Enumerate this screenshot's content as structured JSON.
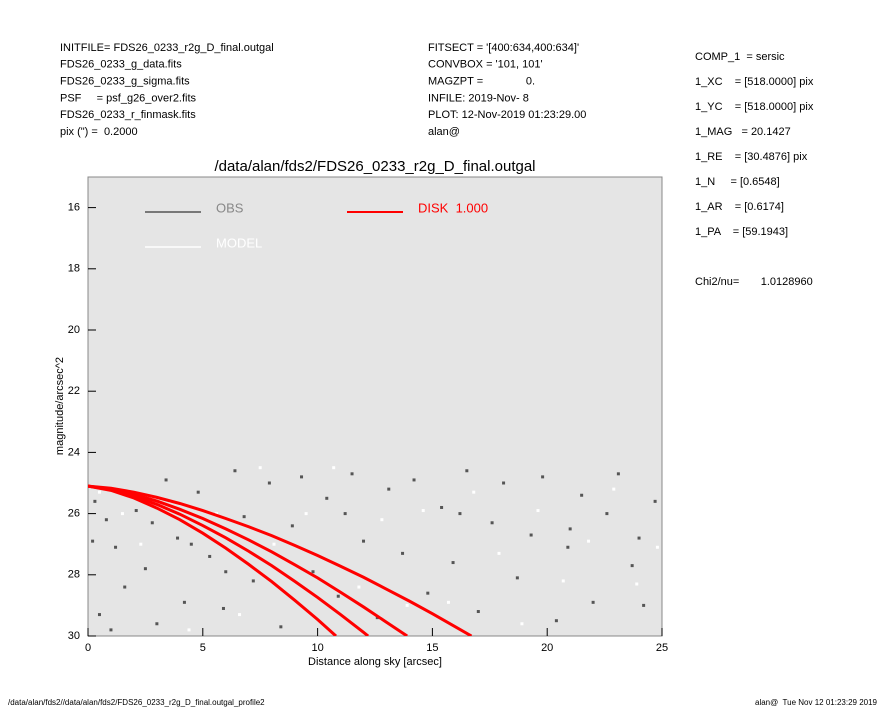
{
  "header": {
    "left": [
      "INITFILE= FDS26_0233_r2g_D_final.outgal",
      "FDS26_0233_g_data.fits",
      "FDS26_0233_g_sigma.fits",
      "PSF     = psf_g26_over2.fits",
      "FDS26_0233_r_finmask.fits",
      "pix (\") =  0.2000"
    ],
    "middle": [
      "FITSECT = '[400:634,400:634]'",
      "CONVBOX = '101, 101'",
      "MAGZPT =              0.",
      "INFILE: 2019-Nov- 8",
      "PLOT: 12-Nov-2019 01:23:29.00",
      "alan@"
    ],
    "right": [
      "COMP_1  = sersic",
      "1_XC    = [518.0000] pix",
      "1_YC    = [518.0000] pix",
      "1_MAG   = 20.1427",
      "1_RE    = [30.4876] pix",
      "1_N     = [0.6548]",
      "1_AR    = [0.6174]",
      "1_PA    = [59.1943]"
    ],
    "chi2": "Chi2/nu=       1.0128960"
  },
  "footer": {
    "left": "/data/alan/fds2//data/alan/fds2/FDS26_0233_r2g_D_final.outgal_profile2",
    "right": "alan@  Tue Nov 12 01:23:29 2019"
  },
  "chart_data": {
    "type": "scatter",
    "title": "/data/alan/fds2/FDS26_0233_r2g_D_final.outgal",
    "xlabel": "Distance along sky [arcsec]",
    "ylabel": "magnitude/arcsec^2",
    "xlim": [
      0,
      25
    ],
    "ylim": [
      30,
      15
    ],
    "xticks": [
      0,
      5,
      10,
      15,
      20,
      25
    ],
    "yticks": [
      16,
      18,
      20,
      22,
      24,
      26,
      28,
      30
    ],
    "background": "#e5e5e5",
    "series": [
      {
        "name": "OBS",
        "color": "#555555",
        "kind": "points",
        "x": [
          0.3,
          0.8,
          1.2,
          1.6,
          0.5,
          2.1,
          2.5,
          3.0,
          3.4,
          3.9,
          4.2,
          4.8,
          5.3,
          5.9,
          6.4,
          6.8,
          7.2,
          7.9,
          8.4,
          8.9,
          9.3,
          9.8,
          10.4,
          10.9,
          11.5,
          12.0,
          12.6,
          13.1,
          13.7,
          14.2,
          14.8,
          15.4,
          15.9,
          16.5,
          17.0,
          17.6,
          18.1,
          18.7,
          19.3,
          19.8,
          20.4,
          20.9,
          21.5,
          22.0,
          22.6,
          23.1,
          23.7,
          24.2,
          24.7,
          1.0,
          0.2,
          2.8,
          4.5,
          6.0,
          11.2,
          16.2,
          21.0,
          24.0
        ],
        "values": [
          25.6,
          26.2,
          27.1,
          28.4,
          29.3,
          25.9,
          27.8,
          29.6,
          24.9,
          26.8,
          28.9,
          25.3,
          27.4,
          29.1,
          24.6,
          26.1,
          28.2,
          25.0,
          29.7,
          26.4,
          24.8,
          27.9,
          25.5,
          28.7,
          24.7,
          26.9,
          29.4,
          25.2,
          27.3,
          24.9,
          28.6,
          25.8,
          27.6,
          24.6,
          29.2,
          26.3,
          25.0,
          28.1,
          26.7,
          24.8,
          29.5,
          27.1,
          25.4,
          28.9,
          26.0,
          24.7,
          27.7,
          29.0,
          25.6,
          29.8,
          26.9,
          26.3,
          27.0,
          27.9,
          26.0,
          26.0,
          26.5,
          26.8
        ]
      },
      {
        "name": "MODEL",
        "color": "#ffffff",
        "kind": "points",
        "x": [
          0.5,
          1.5,
          2.3,
          3.6,
          4.4,
          5.6,
          6.6,
          7.5,
          8.1,
          9.5,
          10.7,
          11.8,
          12.8,
          13.9,
          14.6,
          15.7,
          16.8,
          17.9,
          18.9,
          19.6,
          20.7,
          21.8,
          22.9,
          23.9,
          24.8
        ],
        "values": [
          25.3,
          26.0,
          27.0,
          25.6,
          29.8,
          26.0,
          29.3,
          24.5,
          27.0,
          26.0,
          24.5,
          28.4,
          26.2,
          29.0,
          25.9,
          28.9,
          25.3,
          27.3,
          29.6,
          25.9,
          28.2,
          26.9,
          25.2,
          28.3,
          27.1
        ]
      },
      {
        "name": "DISK  1.000",
        "color": "#ff0000",
        "kind": "lines",
        "curves": [
          {
            "x": [
              0,
              1,
              2,
              3,
              4,
              5,
              6,
              7,
              8,
              9,
              10,
              10.8
            ],
            "values": [
              25.1,
              25.24,
              25.49,
              25.82,
              26.2,
              26.64,
              27.13,
              27.66,
              28.22,
              28.83,
              29.46,
              30
            ]
          },
          {
            "x": [
              0,
              1,
              2,
              3,
              4,
              5,
              6,
              7,
              8,
              9,
              10,
              11,
              12,
              12.2
            ],
            "values": [
              25.1,
              25.22,
              25.43,
              25.7,
              26.02,
              26.39,
              26.79,
              27.23,
              27.7,
              28.21,
              28.74,
              29.3,
              29.88,
              30
            ]
          },
          {
            "x": [
              0,
              1,
              2,
              3,
              4,
              5,
              6,
              7,
              8,
              9,
              10,
              11,
              12,
              13,
              13.9
            ],
            "values": [
              25.1,
              25.2,
              25.37,
              25.59,
              25.86,
              26.16,
              26.5,
              26.86,
              27.25,
              27.67,
              28.1,
              28.57,
              29.05,
              29.55,
              30
            ]
          },
          {
            "x": [
              0,
              1,
              2,
              3,
              4,
              5,
              6,
              7,
              8,
              9,
              10,
              11,
              12,
              13,
              14,
              15,
              16,
              16.7
            ],
            "values": [
              25.1,
              25.17,
              25.3,
              25.47,
              25.67,
              25.9,
              26.16,
              26.43,
              26.72,
              27.04,
              27.37,
              27.72,
              28.08,
              28.47,
              28.86,
              29.27,
              29.7,
              30
            ]
          }
        ]
      }
    ]
  }
}
